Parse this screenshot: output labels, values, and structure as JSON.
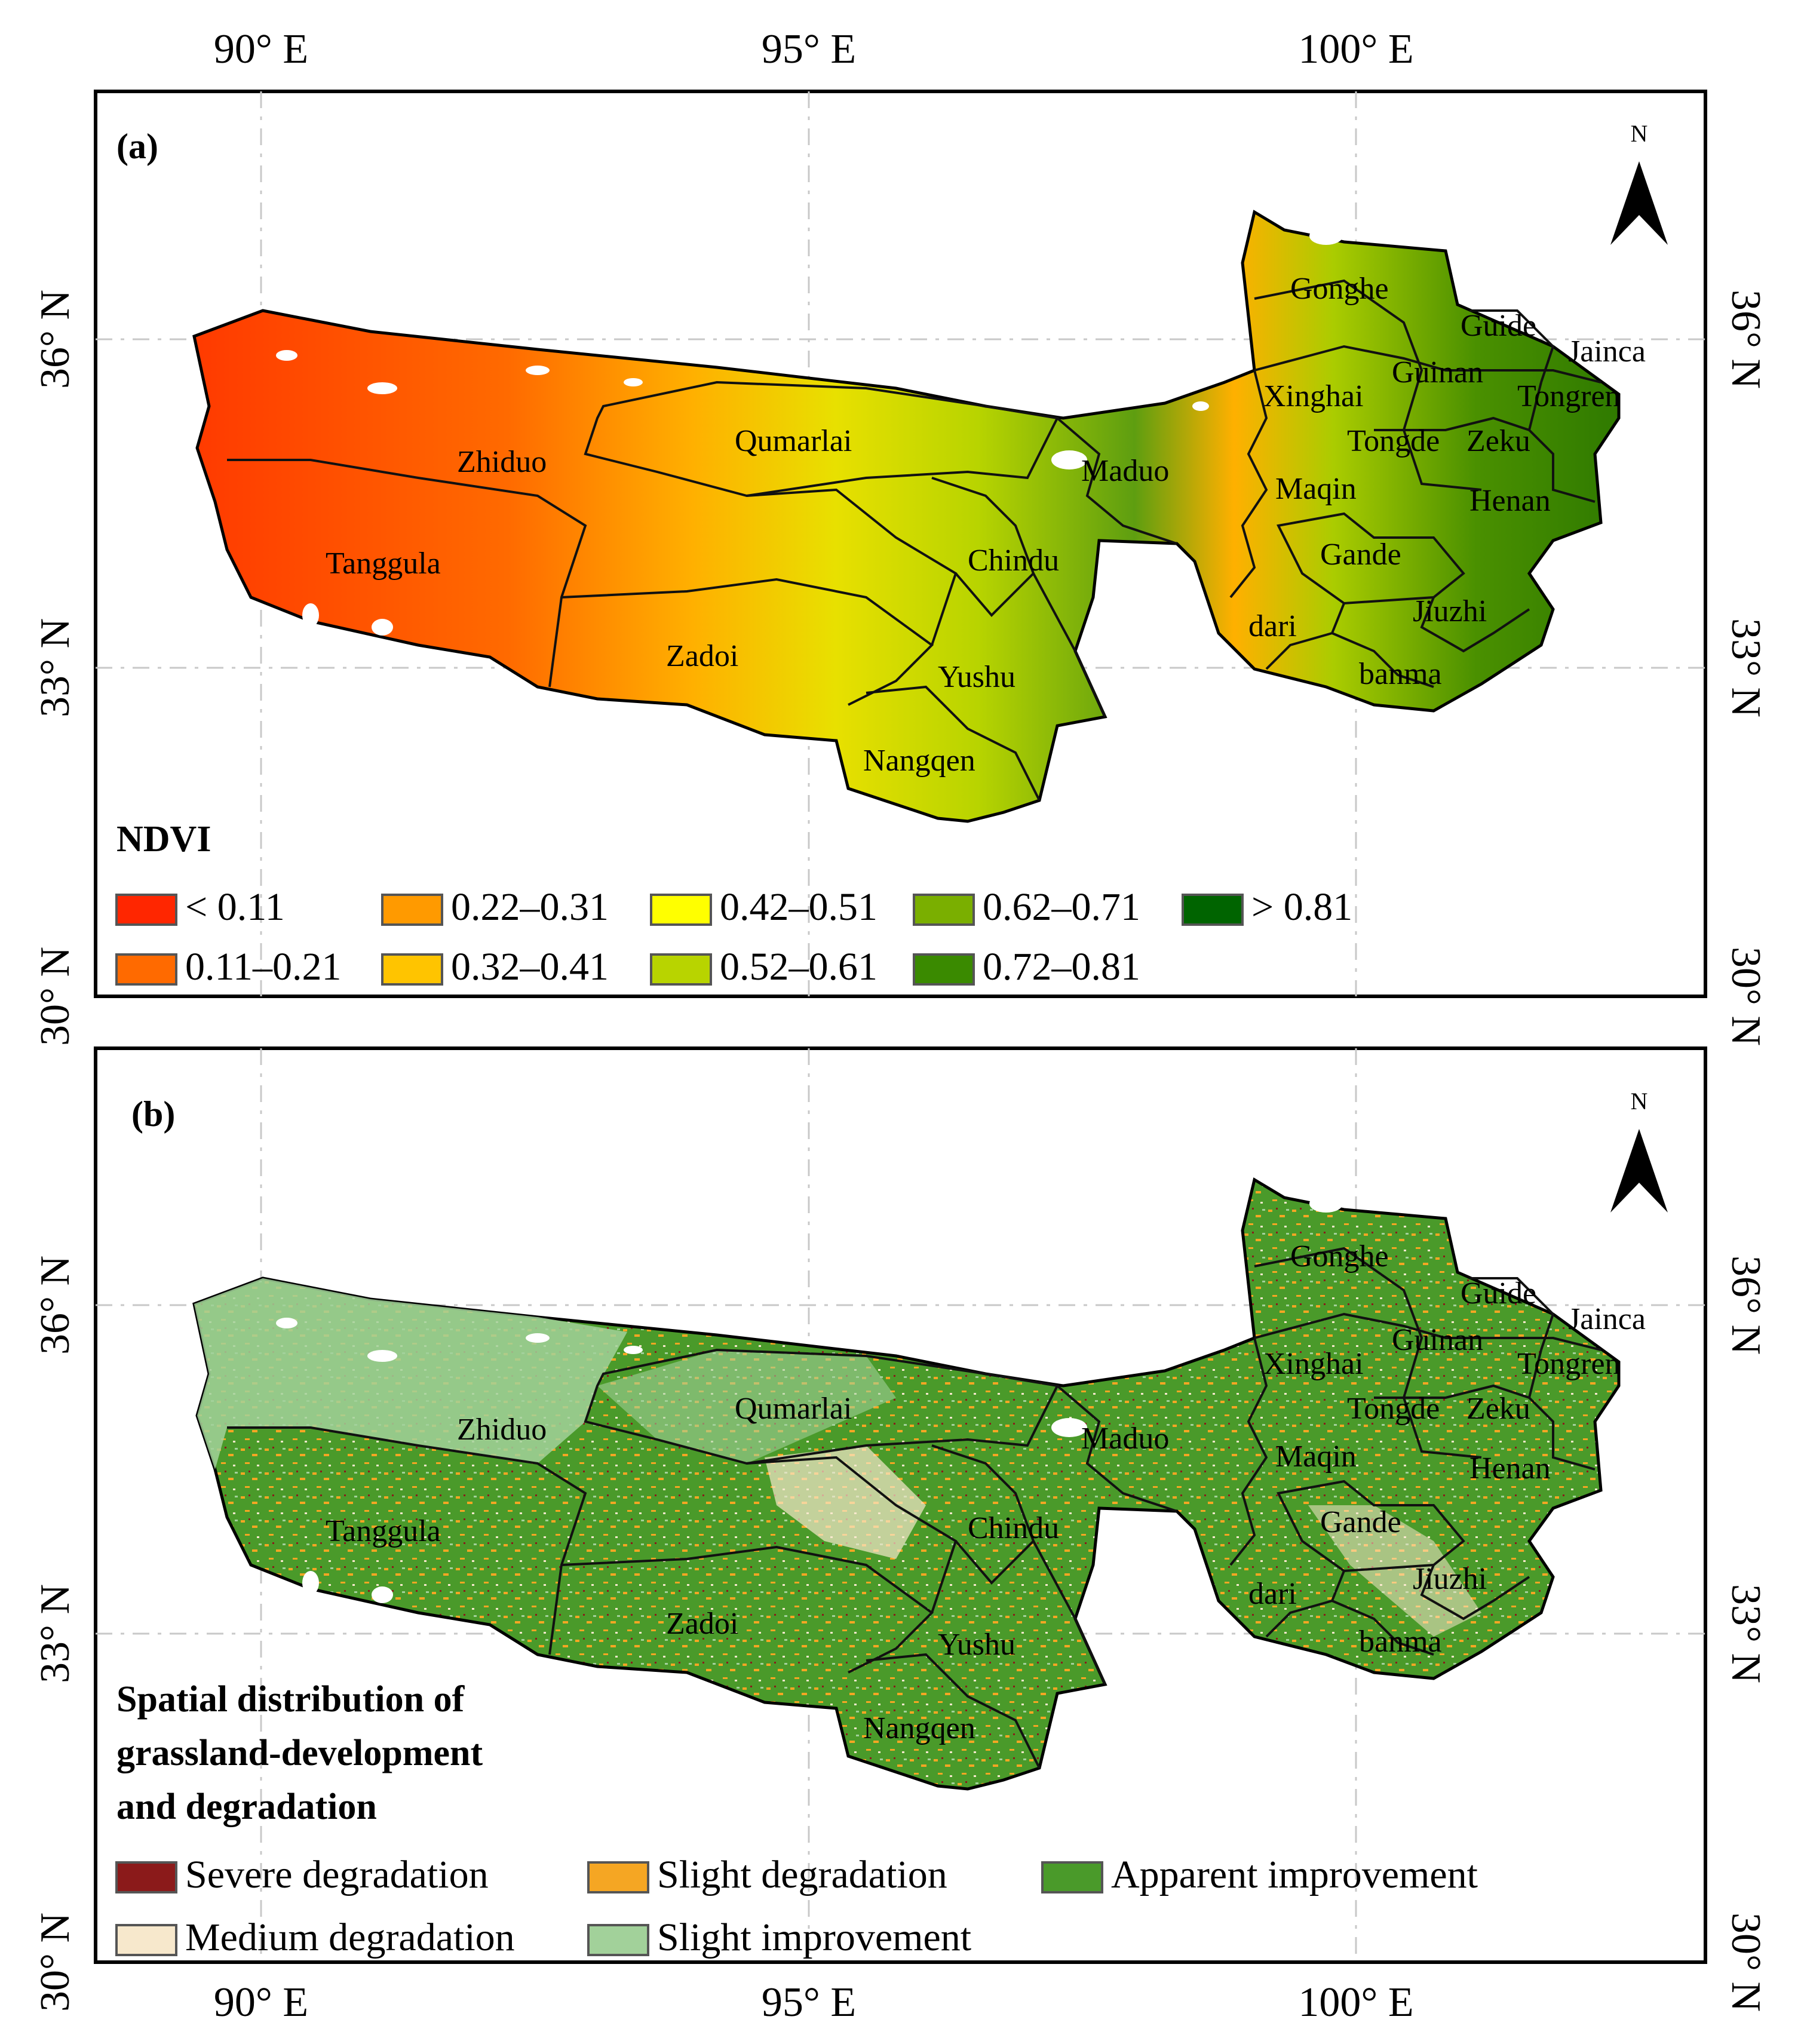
{
  "axes": {
    "lon_labels": [
      "90° E",
      "95° E",
      "100° E"
    ],
    "lat_labels": [
      "36° N",
      "33° N",
      "30° N"
    ]
  },
  "north_label": "N",
  "panels": [
    {
      "id": "a",
      "label": "(a)",
      "legend_title": "NDVI",
      "legend": [
        {
          "label": "< 0.11",
          "color": "#ff2600"
        },
        {
          "label": "0.11–0.21",
          "color": "#ff6a00"
        },
        {
          "label": "0.22–0.31",
          "color": "#ff9a00"
        },
        {
          "label": "0.32–0.41",
          "color": "#ffc400"
        },
        {
          "label": "0.42–0.51",
          "color": "#ffff00"
        },
        {
          "label": "0.52–0.61",
          "color": "#b8d400"
        },
        {
          "label": "0.62–0.71",
          "color": "#7aaf00"
        },
        {
          "label": "0.72–0.81",
          "color": "#3a8a00"
        },
        {
          "label": "> 0.81",
          "color": "#006400"
        }
      ]
    },
    {
      "id": "b",
      "label": "(b)",
      "legend_title_lines": [
        "Spatial distribution of",
        "grassland-development",
        "and degradation"
      ],
      "legend": [
        {
          "label": "Severe degradation",
          "color": "#8b1a1a"
        },
        {
          "label": "Slight degradation",
          "color": "#f5a623"
        },
        {
          "label": "Apparent improvement",
          "color": "#4a9a2a"
        },
        {
          "label": "Medium degradation",
          "color": "#f7e8cc"
        },
        {
          "label": "Slight improvement",
          "color": "#a2d19a"
        }
      ]
    }
  ],
  "counties": [
    "Gonghe",
    "Guide",
    "Jainca",
    "Guinan",
    "Tongren",
    "Xinghai",
    "Tongde",
    "Zeku",
    "Maduo",
    "Maqin",
    "Henan",
    "Gande",
    "dari",
    "Jiuzhi",
    "banma",
    "Zhiduo",
    "Qumarlai",
    "Chindu",
    "Tanggula",
    "Zadoi",
    "Yushu",
    "Nangqen"
  ]
}
